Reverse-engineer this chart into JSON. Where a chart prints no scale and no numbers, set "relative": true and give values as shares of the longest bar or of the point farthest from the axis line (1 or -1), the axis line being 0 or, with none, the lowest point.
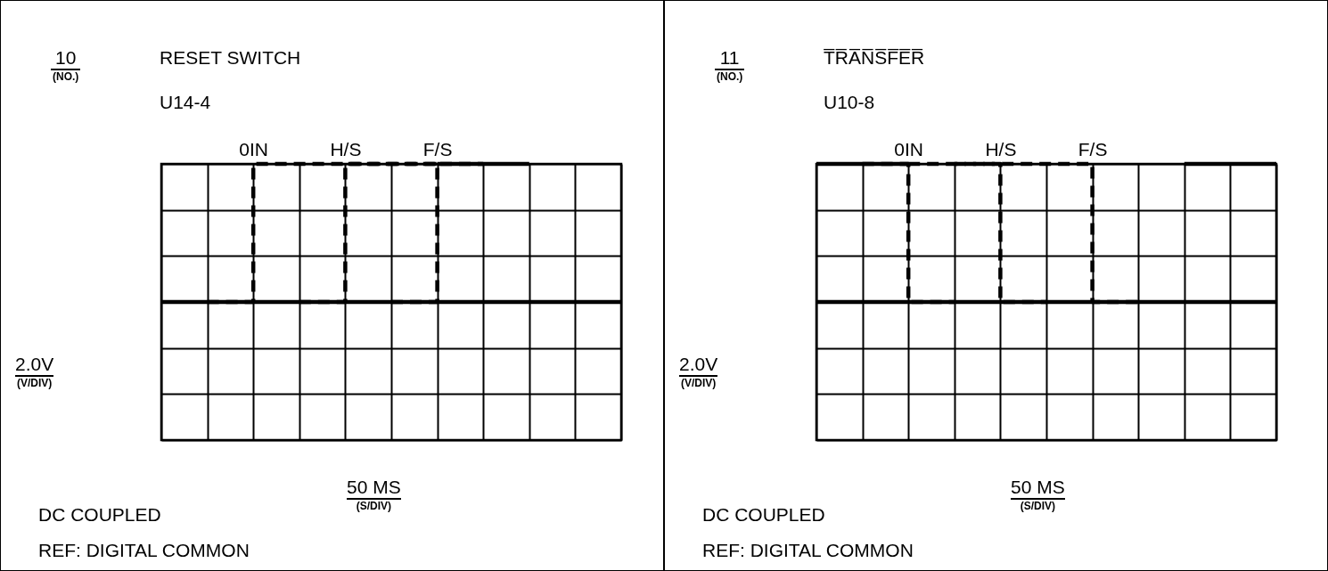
{
  "chart_data": [
    {
      "type": "step",
      "title": "RESET SWITCH",
      "subtitle": "U14-4",
      "ylabel": "2.0V",
      "xlabel": "50 MS",
      "annotations": [
        "10",
        "(NO.)",
        "(V/DIV)",
        "(S/DIV)",
        "DC COUPLED",
        "REF:  DIGITAL COMMON"
      ],
      "categories": [
        null,
        null,
        "0IN",
        null,
        "H/S",
        null,
        "F/S",
        null,
        null,
        null,
        null
      ],
      "relative": true,
      "grid": true,
      "tick_labels": "x",
      "series": [
        {
          "color": "#000000",
          "line_style": "solid",
          "values": [
            0,
            0,
            0,
            0,
            0,
            0,
            0,
            0,
            0,
            0,
            0
          ]
        },
        {
          "color": "#000000",
          "line_style": "dashed",
          "values": [
            null,
            0,
            1,
            1,
            1,
            1,
            1,
            null,
            null,
            null,
            null
          ]
        },
        {
          "color": "#000000",
          "line_style": "dashed",
          "values": [
            null,
            null,
            null,
            0,
            1,
            1,
            1,
            null,
            null,
            null,
            null
          ]
        },
        {
          "color": "#000000",
          "line_style": "dashed",
          "values": [
            null,
            null,
            null,
            null,
            null,
            0,
            1,
            1,
            null,
            null,
            null
          ]
        },
        {
          "color": "#000000",
          "line_style": "solid",
          "values": [
            null,
            null,
            null,
            null,
            null,
            null,
            1,
            1,
            1,
            null,
            null
          ]
        }
      ]
    },
    {
      "type": "step",
      "title": "T̅R̅A̅N̅S̅F̅E̅R̅",
      "subtitle": "U10-8",
      "ylabel": "2.0V",
      "xlabel": "50 MS",
      "annotations": [
        "11",
        "(NO.)",
        "(V/DIV)",
        "(S/DIV)",
        "DC COUPLED",
        "REF:  DIGITAL COMMON"
      ],
      "categories": [
        null,
        null,
        "0IN",
        null,
        "H/S",
        null,
        "F/S",
        null,
        null,
        null,
        null
      ],
      "relative": true,
      "grid": true,
      "tick_labels": "x",
      "series": [
        {
          "color": "#000000",
          "line_style": "solid",
          "values": [
            0,
            0,
            0,
            0,
            0,
            0,
            0,
            0,
            0,
            0,
            0
          ]
        },
        {
          "color": "#000000",
          "line_style": "dashed",
          "values": [
            null,
            1,
            0,
            0,
            null,
            null,
            null,
            null,
            null,
            null,
            null
          ]
        },
        {
          "color": "#000000",
          "line_style": "solid",
          "values": [
            1,
            1,
            1,
            null,
            null,
            null,
            null,
            null,
            null,
            null,
            null
          ]
        },
        {
          "color": "#000000",
          "line_style": "dashed",
          "values": [
            null,
            null,
            1,
            1,
            1,
            1,
            0,
            0,
            null,
            null,
            null
          ]
        },
        {
          "color": "#000000",
          "line_style": "dashed",
          "values": [
            null,
            null,
            null,
            1,
            0,
            0,
            null,
            null,
            null,
            null,
            null
          ]
        },
        {
          "color": "#000000",
          "line_style": "solid",
          "values": [
            null,
            null,
            null,
            null,
            null,
            null,
            null,
            null,
            1,
            1,
            1
          ]
        }
      ]
    }
  ]
}
